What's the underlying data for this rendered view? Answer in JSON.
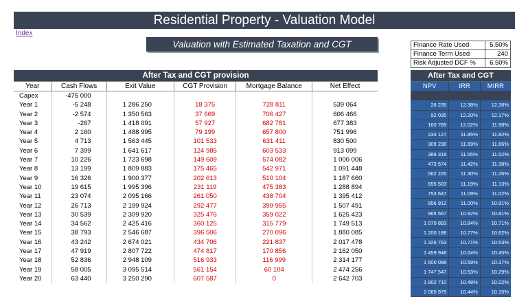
{
  "title": "Residential Property - Valuation Model",
  "index_link": "Index",
  "subtitle": "Valuation with Estimated Taxation and CGT",
  "params": [
    {
      "label": "Finance Rate Used",
      "value": "5.50%"
    },
    {
      "label": "Finance Term Used",
      "value": "240"
    },
    {
      "label": "Risk Adjusted DCF %",
      "value": "6.50%"
    }
  ],
  "table": {
    "header": "After Tax and CGT provision",
    "columns": [
      "Year",
      "Cash Flows",
      "Exit Value",
      "CGT Provision",
      "Mortgage Balance",
      "Net Effect"
    ],
    "rows": [
      {
        "year": "Capex",
        "cf": "-475 000",
        "ev": "",
        "cgt": "",
        "mb": "",
        "ne": ""
      },
      {
        "year": "Year 1",
        "cf": "-5 248",
        "ev": "1 286 250",
        "cgt": "18 375",
        "mb": "728 811",
        "ne": "539 064"
      },
      {
        "year": "Year 2",
        "cf": "-2 574",
        "ev": "1 350 563",
        "cgt": "37 669",
        "mb": "706 427",
        "ne": "606 466"
      },
      {
        "year": "Year 3",
        "cf": "-267",
        "ev": "1 418 091",
        "cgt": "57 927",
        "mb": "682 781",
        "ne": "677 383"
      },
      {
        "year": "Year 4",
        "cf": "2 160",
        "ev": "1 488 995",
        "cgt": "79 199",
        "mb": "657 800",
        "ne": "751 996"
      },
      {
        "year": "Year 5",
        "cf": "4 713",
        "ev": "1 563 445",
        "cgt": "101 533",
        "mb": "631 411",
        "ne": "830 500"
      },
      {
        "year": "Year 6",
        "cf": "7 399",
        "ev": "1 641 617",
        "cgt": "124 985",
        "mb": "603 533",
        "ne": "913 099"
      },
      {
        "year": "Year 7",
        "cf": "10 226",
        "ev": "1 723 698",
        "cgt": "149 609",
        "mb": "574 082",
        "ne": "1 000 006"
      },
      {
        "year": "Year 8",
        "cf": "13 199",
        "ev": "1 809 883",
        "cgt": "175 465",
        "mb": "542 971",
        "ne": "1 091 448"
      },
      {
        "year": "Year 9",
        "cf": "16 326",
        "ev": "1 900 377",
        "cgt": "202 613",
        "mb": "510 104",
        "ne": "1 187 660"
      },
      {
        "year": "Year 10",
        "cf": "19 615",
        "ev": "1 995 396",
        "cgt": "231 119",
        "mb": "475 383",
        "ne": "1 288 894"
      },
      {
        "year": "Year 11",
        "cf": "23 074",
        "ev": "2 095 166",
        "cgt": "261 050",
        "mb": "438 704",
        "ne": "1 395 412"
      },
      {
        "year": "Year 12",
        "cf": "26 713",
        "ev": "2 199 924",
        "cgt": "292 477",
        "mb": "399 955",
        "ne": "1 507 491"
      },
      {
        "year": "Year 13",
        "cf": "30 539",
        "ev": "2 309 920",
        "cgt": "325 476",
        "mb": "359 022",
        "ne": "1 625 423"
      },
      {
        "year": "Year 14",
        "cf": "34 562",
        "ev": "2 425 416",
        "cgt": "360 125",
        "mb": "315 779",
        "ne": "1 749 513"
      },
      {
        "year": "Year 15",
        "cf": "38 793",
        "ev": "2 546 687",
        "cgt": "396 506",
        "mb": "270 096",
        "ne": "1 880 085"
      },
      {
        "year": "Year 16",
        "cf": "43 242",
        "ev": "2 674 021",
        "cgt": "434 706",
        "mb": "221 837",
        "ne": "2 017 478"
      },
      {
        "year": "Year 17",
        "cf": "47 919",
        "ev": "2 807 722",
        "cgt": "474 817",
        "mb": "170 856",
        "ne": "2 162 050"
      },
      {
        "year": "Year 18",
        "cf": "52 836",
        "ev": "2 948 109",
        "cgt": "516 933",
        "mb": "116 999",
        "ne": "2 314 177"
      },
      {
        "year": "Year 19",
        "cf": "58 005",
        "ev": "3 095 514",
        "cgt": "561 154",
        "mb": "60 104",
        "ne": "2 474 256"
      },
      {
        "year": "Year 20",
        "cf": "63 440",
        "ev": "3 250 290",
        "cgt": "607 587",
        "mb": "0",
        "ne": "2 642 703"
      }
    ]
  },
  "side": {
    "header": "After Tax and CGT",
    "columns": [
      "NPV",
      "IRR",
      "MIRR"
    ],
    "rows": [
      {
        "npv": "",
        "irr": "",
        "mirr": ""
      },
      {
        "npv": "26 235",
        "irr": "12.38%",
        "mirr": "12.38%"
      },
      {
        "npv": "92 035",
        "irr": "12.20%",
        "mirr": "12.17%"
      },
      {
        "npv": "160 789",
        "irr": "12.02%",
        "mirr": "11.98%"
      },
      {
        "npv": "233 127",
        "irr": "11.85%",
        "mirr": "11.82%"
      },
      {
        "npv": "309 238",
        "irr": "11.69%",
        "mirr": "11.66%"
      },
      {
        "npv": "389 318",
        "irr": "11.55%",
        "mirr": "11.52%"
      },
      {
        "npv": "473 574",
        "irr": "11.42%",
        "mirr": "11.38%"
      },
      {
        "npv": "562 226",
        "irr": "11.30%",
        "mirr": "11.26%"
      },
      {
        "npv": "655 503",
        "irr": "11.19%",
        "mirr": "11.13%"
      },
      {
        "npv": "753 647",
        "irr": "11.09%",
        "mirr": "11.02%"
      },
      {
        "npv": "856 912",
        "irr": "11.00%",
        "mirr": "10.91%"
      },
      {
        "npv": "965 567",
        "irr": "10.92%",
        "mirr": "10.81%"
      },
      {
        "npv": "1 079 893",
        "irr": "10.84%",
        "mirr": "10.71%"
      },
      {
        "npv": "1 200 188",
        "irr": "10.77%",
        "mirr": "10.62%"
      },
      {
        "npv": "1 326 763",
        "irr": "10.71%",
        "mirr": "10.53%"
      },
      {
        "npv": "1 459 948",
        "irr": "10.64%",
        "mirr": "10.45%"
      },
      {
        "npv": "1 600 088",
        "irr": "10.59%",
        "mirr": "10.37%"
      },
      {
        "npv": "1 747 547",
        "irr": "10.53%",
        "mirr": "10.29%"
      },
      {
        "npv": "1 902 710",
        "irr": "10.48%",
        "mirr": "10.22%"
      },
      {
        "npv": "2 065 979",
        "irr": "10.44%",
        "mirr": "10.15%"
      }
    ]
  },
  "colors": {
    "header_bg": "#3a4353",
    "side_cell_bg": "#2f5f9e",
    "negative_red": "#d00000",
    "link_purple": "#7030a0"
  }
}
